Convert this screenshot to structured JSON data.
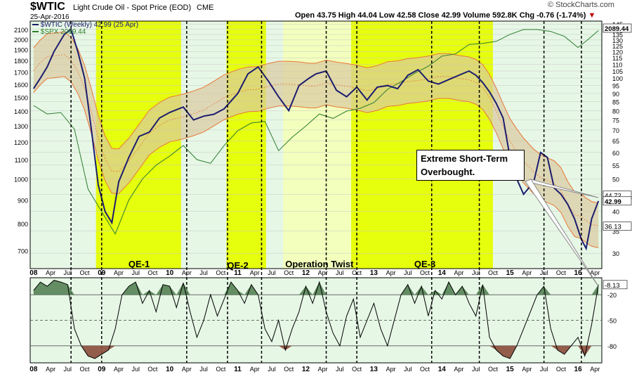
{
  "header": {
    "symbol": "$WTIC",
    "name": "Light Crude Oil - Spot Price (EOD)",
    "exchange": "CME",
    "date": "25-Apr-2016",
    "open_label": "Open",
    "open": "43.75",
    "high_label": "High",
    "high": "44.04",
    "low_label": "Low",
    "low": "42.58",
    "close_label": "Close",
    "close": "42.99",
    "volume_label": "Volume",
    "volume": "592.8K",
    "chg_label": "Chg",
    "chg": "-0.76 (-1.74%)",
    "chg_arrow": "▼",
    "watermark": "© StockCharts.com"
  },
  "legend": {
    "wtic": "$WTIC (Weekly) 42.99 (25 Apr)",
    "spx": "$SPX 2089.44"
  },
  "annotation": {
    "line1": "Extreme Short-Term",
    "line2": "Overbought."
  },
  "colors": {
    "wtic": "#1c1c6e",
    "spx": "#2e7d2e",
    "spx_bands_fill": "#c8d8a0",
    "band": "#e8793a",
    "band_fill": "#d9c9a0",
    "qe_band": "#e6ff00",
    "twist_band": "#f4ffb8",
    "plot_bg": "#e6f7e6",
    "osc_fill_pos": "#4c7a4c",
    "osc_fill_neg": "#8a4b3a"
  },
  "chart_data": [
    {
      "type": "line",
      "title": "$WTIC Light Crude Oil - Spot Price (EOD)",
      "x_axis_labels": [
        "08",
        "Apr",
        "Jul",
        "Oct",
        "09",
        "Apr",
        "Jul",
        "Oct",
        "10",
        "Apr",
        "Jul",
        "Oct",
        "11",
        "Apr",
        "Jul",
        "Oct",
        "12",
        "Apr",
        "Jul",
        "Oct",
        "13",
        "Apr",
        "Jul",
        "Oct",
        "14",
        "Apr",
        "Jul",
        "Oct",
        "15",
        "Apr",
        "Jul",
        "Oct",
        "16",
        "Apr"
      ],
      "left_axis_ticks": [
        700,
        800,
        900,
        1000,
        1100,
        1200,
        1300,
        1400,
        1500,
        1600,
        1700,
        1800,
        1900,
        2000,
        2100
      ],
      "right_axis_ticks": [
        30,
        35,
        40,
        45,
        50,
        55,
        60,
        65,
        70,
        75,
        80,
        85,
        90,
        95,
        100,
        105,
        110,
        115,
        120,
        125,
        130,
        135,
        140,
        145
      ],
      "right_axis_scale": "log",
      "right_axis_labels": [
        "44.72",
        "42.99",
        "36.13",
        "2089.44"
      ],
      "shaded_periods": [
        {
          "label": "QE-1",
          "start": "2008-12",
          "end": "2010-03",
          "style": "qe"
        },
        {
          "label": "QE-2",
          "start": "2010-11",
          "end": "2011-06",
          "style": "qe"
        },
        {
          "label": "Operation Twist",
          "start": "2011-09",
          "end": "2012-12",
          "style": "twist"
        },
        {
          "label": "QE-3",
          "start": "2012-09",
          "end": "2014-10",
          "style": "qe"
        }
      ],
      "series": [
        {
          "name": "$WTIC (Weekly) 42.99 (25 Apr)",
          "axis": "right",
          "x": [
            2008.0,
            2008.1,
            2008.2,
            2008.3,
            2008.45,
            2008.55,
            2008.65,
            2008.75,
            2008.85,
            2008.95,
            2009.05,
            2009.15,
            2009.25,
            2009.4,
            2009.55,
            2009.7,
            2009.85,
            2010.0,
            2010.2,
            2010.35,
            2010.5,
            2010.65,
            2010.8,
            2011.0,
            2011.15,
            2011.3,
            2011.45,
            2011.6,
            2011.75,
            2011.9,
            2012.05,
            2012.15,
            2012.3,
            2012.45,
            2012.6,
            2012.75,
            2012.9,
            2013.05,
            2013.2,
            2013.35,
            2013.5,
            2013.65,
            2013.8,
            2013.95,
            2014.1,
            2014.25,
            2014.4,
            2014.5,
            2014.6,
            2014.7,
            2014.8,
            2014.9,
            2015.0,
            2015.1,
            2015.2,
            2015.35,
            2015.45,
            2015.55,
            2015.65,
            2015.75,
            2015.85,
            2015.95,
            2016.05,
            2016.12,
            2016.2,
            2016.3
          ],
          "y": [
            93,
            100,
            108,
            120,
            135,
            140,
            120,
            100,
            70,
            48,
            40,
            37,
            49,
            58,
            67,
            69,
            76,
            79,
            82,
            75,
            77,
            78,
            81,
            90,
            103,
            108,
            98,
            88,
            80,
            95,
            100,
            103,
            105,
            92,
            88,
            94,
            86,
            94,
            95,
            93,
            102,
            106,
            98,
            96,
            99,
            102,
            105,
            102,
            97,
            91,
            84,
            76,
            58,
            50,
            45,
            49,
            60,
            58,
            47,
            45,
            42,
            38,
            33,
            31,
            38,
            42.99
          ]
        },
        {
          "name": "$SPX 2089.44",
          "axis": "left",
          "x": [
            2008.0,
            2008.2,
            2008.4,
            2008.6,
            2008.8,
            2009.0,
            2009.2,
            2009.4,
            2009.6,
            2009.8,
            2010.0,
            2010.2,
            2010.4,
            2010.6,
            2010.8,
            2011.0,
            2011.2,
            2011.4,
            2011.6,
            2011.8,
            2012.0,
            2012.2,
            2012.4,
            2012.6,
            2012.8,
            2013.0,
            2013.2,
            2013.4,
            2013.6,
            2013.8,
            2014.0,
            2014.2,
            2014.4,
            2014.6,
            2014.8,
            2015.0,
            2015.2,
            2015.4,
            2015.6,
            2015.8,
            2016.0,
            2016.15,
            2016.3
          ],
          "y": [
            1440,
            1380,
            1390,
            1280,
            950,
            850,
            760,
            900,
            1000,
            1070,
            1120,
            1180,
            1100,
            1080,
            1180,
            1270,
            1320,
            1330,
            1150,
            1230,
            1300,
            1380,
            1350,
            1400,
            1420,
            1460,
            1560,
            1620,
            1690,
            1750,
            1840,
            1860,
            1950,
            1960,
            1980,
            2050,
            2100,
            2100,
            2080,
            2030,
            1920,
            2000,
            2089.44
          ]
        }
      ]
    },
    {
      "type": "area",
      "title": "",
      "y_ticks": [
        -20,
        -50,
        -80
      ],
      "last_value_label": "-8.13",
      "series": [
        {
          "name": "",
          "x": [
            2008.0,
            2008.1,
            2008.2,
            2008.3,
            2008.4,
            2008.5,
            2008.6,
            2008.7,
            2008.8,
            2008.9,
            2009.0,
            2009.1,
            2009.2,
            2009.3,
            2009.4,
            2009.5,
            2009.6,
            2009.7,
            2009.8,
            2009.9,
            2010.0,
            2010.1,
            2010.2,
            2010.3,
            2010.4,
            2010.5,
            2010.6,
            2010.7,
            2010.8,
            2010.9,
            2011.0,
            2011.1,
            2011.2,
            2011.3,
            2011.4,
            2011.5,
            2011.6,
            2011.7,
            2011.8,
            2011.9,
            2012.0,
            2012.1,
            2012.2,
            2012.3,
            2012.4,
            2012.5,
            2012.6,
            2012.7,
            2012.8,
            2012.9,
            2013.0,
            2013.1,
            2013.2,
            2013.3,
            2013.4,
            2013.5,
            2013.6,
            2013.7,
            2013.8,
            2013.9,
            2014.0,
            2014.1,
            2014.2,
            2014.3,
            2014.4,
            2014.5,
            2014.6,
            2014.7,
            2014.8,
            2014.9,
            2015.0,
            2015.1,
            2015.2,
            2015.3,
            2015.4,
            2015.5,
            2015.6,
            2015.7,
            2015.8,
            2015.9,
            2016.0,
            2016.1,
            2016.2,
            2016.3
          ],
          "y": [
            -15,
            -5,
            -10,
            -3,
            -5,
            -8,
            -60,
            -80,
            -92,
            -95,
            -90,
            -85,
            -60,
            -20,
            -10,
            -5,
            -30,
            -15,
            -40,
            -8,
            -10,
            -35,
            -6,
            -40,
            -70,
            -50,
            -20,
            -45,
            -25,
            -5,
            -15,
            -30,
            -8,
            -20,
            -60,
            -75,
            -50,
            -85,
            -60,
            -40,
            -10,
            -30,
            -5,
            -40,
            -65,
            -80,
            -45,
            -25,
            -70,
            -50,
            -30,
            -60,
            -80,
            -50,
            -20,
            -8,
            -30,
            -10,
            -45,
            -15,
            -25,
            -5,
            -20,
            -10,
            -30,
            -45,
            -8,
            -70,
            -85,
            -92,
            -95,
            -80,
            -60,
            -40,
            -20,
            -10,
            -60,
            -85,
            -90,
            -80,
            -70,
            -92,
            -55,
            -8.13
          ]
        }
      ]
    }
  ]
}
